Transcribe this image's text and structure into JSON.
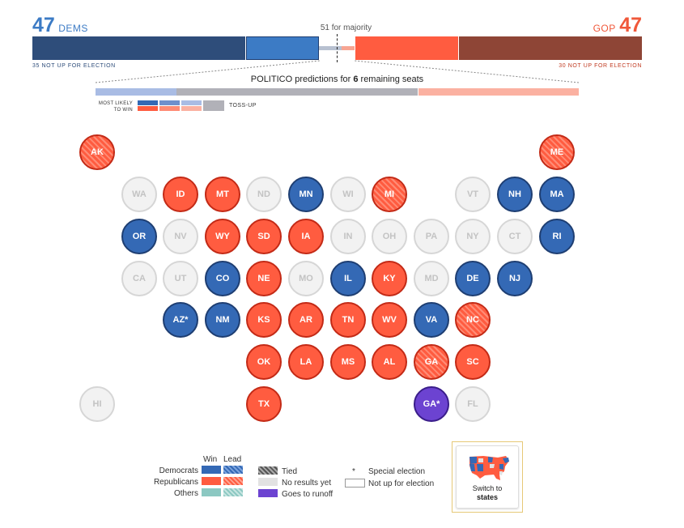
{
  "dems": {
    "count": "47",
    "label": "DEMS",
    "not_up": "35 NOT UP FOR ELECTION",
    "color": "#3c7bc5"
  },
  "gop": {
    "count": "47",
    "label": "GOP",
    "not_up": "30 NOT UP FOR ELECTION",
    "color": "#f0583a"
  },
  "majority_label": "51 for majority",
  "predictions": {
    "prefix": "POLITICO predictions for ",
    "count": "6",
    "suffix": " remaining seats"
  },
  "likely": {
    "line1": "MOST LIKELY",
    "line2": "TO WIN",
    "tossup": "TOSS-UP"
  },
  "states": [
    {
      "abbr": "AK",
      "status": "gop-lead"
    },
    {
      "abbr": "ME",
      "status": "gop-lead"
    },
    {
      "abbr": "WA",
      "status": "none"
    },
    {
      "abbr": "ID",
      "status": "gop-win"
    },
    {
      "abbr": "MT",
      "status": "gop-win"
    },
    {
      "abbr": "ND",
      "status": "none"
    },
    {
      "abbr": "MN",
      "status": "dem-win"
    },
    {
      "abbr": "WI",
      "status": "none"
    },
    {
      "abbr": "MI",
      "status": "gop-lead"
    },
    {
      "abbr": "VT",
      "status": "none"
    },
    {
      "abbr": "NH",
      "status": "dem-win"
    },
    {
      "abbr": "MA",
      "status": "dem-win"
    },
    {
      "abbr": "OR",
      "status": "dem-win"
    },
    {
      "abbr": "NV",
      "status": "none"
    },
    {
      "abbr": "WY",
      "status": "gop-win"
    },
    {
      "abbr": "SD",
      "status": "gop-win"
    },
    {
      "abbr": "IA",
      "status": "gop-win"
    },
    {
      "abbr": "IN",
      "status": "none"
    },
    {
      "abbr": "OH",
      "status": "none"
    },
    {
      "abbr": "PA",
      "status": "none"
    },
    {
      "abbr": "NY",
      "status": "none"
    },
    {
      "abbr": "CT",
      "status": "none"
    },
    {
      "abbr": "RI",
      "status": "dem-win"
    },
    {
      "abbr": "CA",
      "status": "none"
    },
    {
      "abbr": "UT",
      "status": "none"
    },
    {
      "abbr": "CO",
      "status": "dem-win"
    },
    {
      "abbr": "NE",
      "status": "gop-win"
    },
    {
      "abbr": "MO",
      "status": "none"
    },
    {
      "abbr": "IL",
      "status": "dem-win"
    },
    {
      "abbr": "KY",
      "status": "gop-win"
    },
    {
      "abbr": "MD",
      "status": "none"
    },
    {
      "abbr": "DE",
      "status": "dem-win"
    },
    {
      "abbr": "NJ",
      "status": "dem-win"
    },
    {
      "abbr": "AZ*",
      "status": "dem-win"
    },
    {
      "abbr": "NM",
      "status": "dem-win"
    },
    {
      "abbr": "KS",
      "status": "gop-win"
    },
    {
      "abbr": "AR",
      "status": "gop-win"
    },
    {
      "abbr": "TN",
      "status": "gop-win"
    },
    {
      "abbr": "WV",
      "status": "gop-win"
    },
    {
      "abbr": "VA",
      "status": "dem-win"
    },
    {
      "abbr": "NC",
      "status": "gop-lead"
    },
    {
      "abbr": "OK",
      "status": "gop-win"
    },
    {
      "abbr": "LA",
      "status": "gop-win"
    },
    {
      "abbr": "MS",
      "status": "gop-win"
    },
    {
      "abbr": "AL",
      "status": "gop-win"
    },
    {
      "abbr": "GA",
      "status": "gop-lead"
    },
    {
      "abbr": "SC",
      "status": "gop-win"
    },
    {
      "abbr": "HI",
      "status": "none"
    },
    {
      "abbr": "TX",
      "status": "gop-win"
    },
    {
      "abbr": "GA*",
      "status": "runoff"
    },
    {
      "abbr": "FL",
      "status": "none"
    }
  ],
  "legend": {
    "win": "Win",
    "lead": "Lead",
    "democrats": "Democrats",
    "republicans": "Republicans",
    "others": "Others",
    "tied": "Tied",
    "no_results": "No results yet",
    "runoff": "Goes to runoff",
    "asterisk": "*",
    "special": "Special election",
    "not_up": "Not up for election"
  },
  "switch": {
    "line1": "Switch to",
    "line2": "states"
  }
}
